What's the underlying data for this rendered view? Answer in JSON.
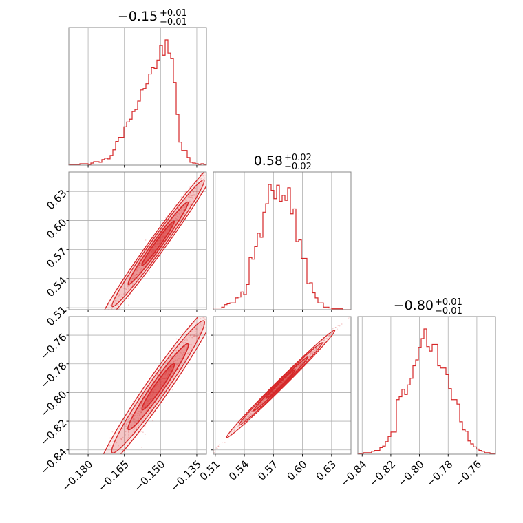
{
  "chart_data": {
    "type": "corner",
    "color": "#d62728",
    "parameters": [
      {
        "range": [
          -0.188,
          -0.131
        ],
        "ticks": [
          -0.18,
          -0.165,
          -0.15,
          -0.135
        ]
      },
      {
        "range": [
          0.508,
          0.65
        ],
        "ticks": [
          0.51,
          0.54,
          0.57,
          0.6,
          0.63
        ]
      },
      {
        "range": [
          -0.843,
          -0.747
        ],
        "ticks": [
          -0.84,
          -0.82,
          -0.8,
          -0.78,
          -0.76
        ]
      }
    ],
    "titles": [
      {
        "value": "−0.15",
        "upper": "+0.01",
        "lower": "−0.01"
      },
      {
        "value": "0.58",
        "upper": "+0.02",
        "lower": "−0.02"
      },
      {
        "value": "−0.80",
        "upper": "+0.01",
        "lower": "−0.01"
      }
    ],
    "tick_labels": {
      "x0": [
        "−0.180",
        "−0.165",
        "−0.150",
        "−0.135"
      ],
      "x1": [
        "0.51",
        "0.54",
        "0.57",
        "0.60",
        "0.63"
      ],
      "x2": [
        "−0.84",
        "−0.82",
        "−0.80",
        "−0.78",
        "−0.76"
      ],
      "y1": [
        "0.51",
        "0.54",
        "0.57",
        "0.60",
        "0.63"
      ],
      "y2": [
        "−0.84",
        "−0.82",
        "−0.80",
        "−0.78",
        "−0.76"
      ]
    },
    "histograms": [
      {
        "param": 0,
        "bin_width": 0.00114,
        "counts": [
          1,
          1,
          1,
          1,
          2,
          2,
          2,
          1,
          3,
          5,
          5,
          4,
          8,
          10,
          9,
          14,
          22,
          34,
          40,
          40,
          55,
          62,
          66,
          77,
          80,
          92,
          108,
          110,
          117,
          131,
          140,
          139,
          151,
          172,
          158,
          180,
          161,
          153,
          119,
          73,
          33,
          21,
          21,
          11,
          4,
          3,
          2,
          1,
          2,
          1
        ]
      },
      {
        "param": 1,
        "bin_width": 0.00284,
        "counts": [
          2,
          2,
          2,
          3,
          6,
          7,
          8,
          8,
          14,
          15,
          21,
          18,
          30,
          62,
          60,
          75,
          91,
          86,
          116,
          126,
          149,
          142,
          132,
          148,
          129,
          136,
          130,
          145,
          114,
          120,
          81,
          83,
          61,
          61,
          31,
          32,
          20,
          14,
          8,
          8,
          3,
          3,
          2,
          1,
          1,
          1,
          1,
          0,
          0,
          0
        ]
      },
      {
        "param": 2,
        "bin_width": 0.00192,
        "counts": [
          1,
          1,
          2,
          2,
          2,
          4,
          5,
          5,
          9,
          11,
          17,
          24,
          30,
          30,
          74,
          78,
          88,
          81,
          94,
          103,
          120,
          128,
          145,
          157,
          170,
          146,
          140,
          149,
          149,
          120,
          117,
          117,
          108,
          89,
          74,
          74,
          68,
          44,
          33,
          31,
          18,
          14,
          10,
          7,
          5,
          4,
          2,
          2,
          1,
          1
        ]
      }
    ],
    "correlations": [
      {
        "x": 0,
        "y": 1,
        "slope": 3.44,
        "intercept": 1.096,
        "along_sd": 0.0095,
        "across_sd": 0.004,
        "center": [
          -0.151,
          0.5765
        ]
      },
      {
        "x": 0,
        "y": 2,
        "slope": 2.42,
        "intercept": -0.4305,
        "along_sd": 0.0095,
        "across_sd": 0.004,
        "center": [
          -0.151,
          -0.796
        ]
      },
      {
        "x": 1,
        "y": 2,
        "slope": 0.67,
        "intercept": -1.181,
        "along_sd": 0.0215,
        "across_sd": 0.0008,
        "center": [
          0.5775,
          -0.794
        ]
      }
    ]
  }
}
